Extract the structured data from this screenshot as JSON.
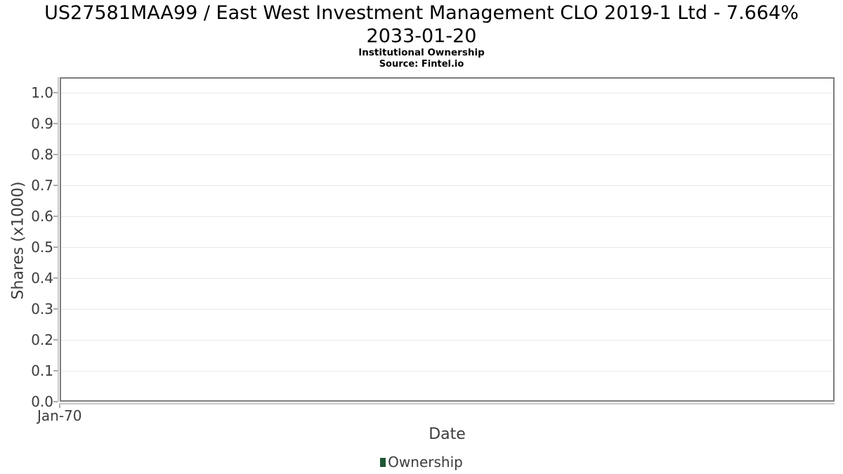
{
  "header": {
    "title_line1": "US27581MAA99 / East West Investment Management CLO 2019-1 Ltd - 7.664%",
    "title_line2": "2033-01-20"
  },
  "chart_data": {
    "type": "line",
    "title": "US27581MAA99 / East West Investment Management CLO 2019-1 Ltd - 7.664% 2033-01-20",
    "subtitle": "Institutional Ownership",
    "source": "Source: Fintel.io",
    "xlabel": "Date",
    "ylabel": "Shares (x1000)",
    "x_ticks": [
      "Jan-70"
    ],
    "y_ticks": [
      "1.0",
      "0.9",
      "0.8",
      "0.7",
      "0.6",
      "0.5",
      "0.4",
      "0.3",
      "0.2",
      "0.1",
      "0.0"
    ],
    "ylim": [
      0.0,
      1.05
    ],
    "grid": true,
    "legend_position": "bottom",
    "series": [
      {
        "name": "Ownership",
        "color": "#1f5733",
        "x": [],
        "values": []
      }
    ]
  },
  "layout_colors": {
    "plot_border": "#7e7e7e",
    "axis_line": "#c9c9c9",
    "gridline": "#e8e8e8",
    "text": "#3c3c3c"
  }
}
